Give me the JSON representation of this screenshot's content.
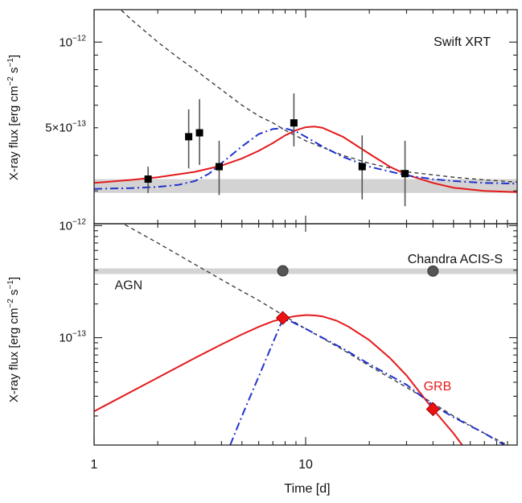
{
  "figure": {
    "xlabel": "Time [d]",
    "x_tick_labels": [
      {
        "v": 1,
        "label": "1"
      },
      {
        "v": 10,
        "label": "10"
      }
    ],
    "y_label_html": {
      "pre": "X-ray flux [erg cm",
      "e1": "−2",
      "mid": " s",
      "e2": "−1",
      "post": "]"
    }
  },
  "chart_data": [
    {
      "type": "scatter",
      "panel": "top",
      "title": "Swift XRT",
      "xscale": "log",
      "yscale": "log",
      "xlim": [
        1,
        100
      ],
      "ylim": [
        2.3e-13,
        1.3e-12
      ],
      "y_tick_labels": [
        {
          "v": 1e-12,
          "base": "10",
          "exp": "−12",
          "mant": ""
        },
        {
          "v": 5e-13,
          "base": "10",
          "exp": "−13",
          "mant": "5×"
        }
      ],
      "band": {
        "y": [
          2.95e-13,
          3.3e-13
        ],
        "color": "#d3d3d3"
      },
      "points": [
        {
          "x": 1.8,
          "y": 3.3e-13,
          "yerr": [
            2.95e-13,
            3.65e-13
          ]
        },
        {
          "x": 2.8,
          "y": 4.65e-13,
          "yerr": [
            3.6e-13,
            5.8e-13
          ]
        },
        {
          "x": 3.15,
          "y": 4.8e-13,
          "yerr": [
            3.7e-13,
            6.3e-13
          ]
        },
        {
          "x": 3.9,
          "y": 3.65e-13,
          "yerr": [
            2.9e-13,
            4.5e-13
          ]
        },
        {
          "x": 8.8,
          "y": 5.2e-13,
          "yerr": [
            4.3e-13,
            6.6e-13
          ]
        },
        {
          "x": 18.5,
          "y": 3.65e-13,
          "yerr": [
            2.8e-13,
            4.7e-13
          ]
        },
        {
          "x": 29.5,
          "y": 3.45e-13,
          "yerr": [
            2.65e-13,
            4.5e-13
          ]
        }
      ],
      "series": [
        {
          "style": "dashed",
          "color": "#333333",
          "x": [
            1.2,
            1.5,
            2,
            2.5,
            3,
            4,
            5,
            6,
            7,
            8,
            10,
            15,
            20,
            30,
            50,
            70,
            100
          ],
          "y": [
            1.4e-12,
            1.2e-12,
            1e-12,
            8.8e-13,
            8e-13,
            6.8e-13,
            6e-13,
            5.5e-13,
            5.2e-13,
            4.9e-13,
            4.5e-13,
            4e-13,
            3.75e-13,
            3.5e-13,
            3.35e-13,
            3.28e-13,
            3.22e-13
          ]
        },
        {
          "style": "solid",
          "color": "#e41a1c",
          "x": [
            1,
            1.5,
            2,
            3,
            4,
            5,
            6,
            7,
            8,
            9,
            10,
            11,
            12,
            15,
            20,
            25,
            30,
            40,
            50,
            70,
            100
          ],
          "y": [
            3.2e-13,
            3.28e-13,
            3.35e-13,
            3.5e-13,
            3.68e-13,
            3.9e-13,
            4.15e-13,
            4.42e-13,
            4.7e-13,
            4.9e-13,
            5.02e-13,
            5.05e-13,
            5e-13,
            4.65e-13,
            4.05e-13,
            3.65e-13,
            3.42e-13,
            3.2e-13,
            3.08e-13,
            3e-13,
            2.97e-13
          ]
        },
        {
          "style": "dashdot",
          "color": "#2233cc",
          "x": [
            1,
            1.5,
            2,
            2.5,
            3,
            3.5,
            4,
            5,
            6,
            7,
            8,
            9,
            10,
            12,
            15,
            20,
            30,
            40,
            50,
            70,
            100
          ],
          "y": [
            3.05e-13,
            3.07e-13,
            3.1e-13,
            3.15e-13,
            3.25e-13,
            3.45e-13,
            3.75e-13,
            4.3e-13,
            4.75e-13,
            4.95e-13,
            4.98e-13,
            4.85e-13,
            4.65e-13,
            4.3e-13,
            3.95e-13,
            3.65e-13,
            3.4e-13,
            3.3e-13,
            3.25e-13,
            3.2e-13,
            3.18e-13
          ]
        }
      ]
    },
    {
      "type": "scatter",
      "panel": "bottom",
      "title": "Chandra ACIS-S",
      "xscale": "log",
      "yscale": "log",
      "xlim": [
        1,
        100
      ],
      "ylim": [
        1.1e-14,
        1.04e-12
      ],
      "y_tick_labels": [
        {
          "v": 1e-12,
          "base": "10",
          "exp": "−12",
          "mant": ""
        },
        {
          "v": 1e-13,
          "base": "10",
          "exp": "−13",
          "mant": ""
        }
      ],
      "band": {
        "y": [
          3.7e-13,
          4.15e-13
        ],
        "color": "#d3d3d3"
      },
      "annotations": [
        {
          "text": "AGN",
          "x": 1.25,
          "y": 2.7e-13,
          "color": "#222222"
        },
        {
          "text": "GRB",
          "x": 42,
          "y": 3.4e-14,
          "color": "#e41a1c"
        }
      ],
      "points_agn": [
        {
          "x": 7.8,
          "y": 3.95e-13
        },
        {
          "x": 40,
          "y": 3.93e-13
        }
      ],
      "points_grb": [
        {
          "x": 7.8,
          "y": 1.5e-13
        },
        {
          "x": 40,
          "y": 2.3e-14
        }
      ],
      "series": [
        {
          "style": "dashed",
          "color": "#333333",
          "x": [
            1.4,
            2,
            3,
            4,
            5,
            6,
            7,
            8,
            10,
            15,
            20,
            30,
            40,
            50,
            70,
            90
          ],
          "y": [
            1.02e-12,
            7e-13,
            4.5e-13,
            3.3e-13,
            2.6e-13,
            2.15e-13,
            1.8e-13,
            1.55e-13,
            1.2e-13,
            7.8e-14,
            5.6e-14,
            3.6e-14,
            2.6e-14,
            2e-14,
            1.4e-14,
            1.1e-14
          ]
        },
        {
          "style": "solid",
          "color": "#e41a1c",
          "x": [
            1,
            1.5,
            2,
            3,
            4,
            5,
            6,
            7,
            8,
            9,
            10,
            11,
            12,
            14,
            16,
            20,
            25,
            30,
            40,
            50,
            55
          ],
          "y": [
            2.2e-14,
            3.3e-14,
            4.4e-14,
            6.6e-14,
            8.7e-14,
            1.07e-13,
            1.25e-13,
            1.4e-13,
            1.5e-13,
            1.56e-13,
            1.59e-13,
            1.58e-13,
            1.55e-13,
            1.42e-13,
            1.25e-13,
            9.5e-14,
            6.6e-14,
            4.6e-14,
            2.3e-14,
            1.4e-14,
            1.1e-14
          ]
        },
        {
          "style": "dashdot",
          "color": "#2233cc",
          "x": [
            4.4,
            5,
            6,
            7,
            7.8,
            8.5,
            10,
            15,
            20,
            30,
            40,
            50,
            70,
            87
          ],
          "y": [
            1.1e-14,
            2e-14,
            4.5e-14,
            9e-14,
            1.46e-13,
            1.4e-13,
            1.2e-13,
            8e-14,
            5.8e-14,
            3.8e-14,
            2.5e-14,
            1.95e-14,
            1.4e-14,
            1.1e-14
          ]
        }
      ]
    }
  ]
}
